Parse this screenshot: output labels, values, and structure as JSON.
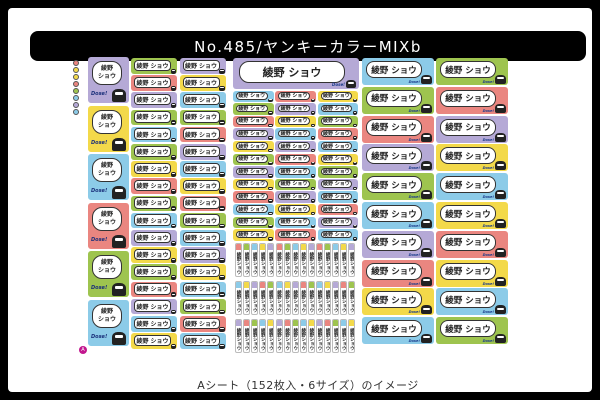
{
  "title": "No.485/ヤンキーカラーMIXb",
  "caption": "Aシート（152枚入・6サイズ）のイメージ",
  "sheet_mark": "A",
  "product_number_label": "No.485",
  "name_text": "綾野 ショウ",
  "name_line1": "綾野",
  "name_line2": "ショウ",
  "deco_text": "Dose!",
  "colors": {
    "purple": "#b5a9d6",
    "yellow": "#f3d94a",
    "blue": "#8ccbe8",
    "green": "#9ec44f",
    "pink": "#ea8680",
    "slate": "#a9b7cf"
  },
  "dot_colors": [
    "#ea8680",
    "#f3d94a",
    "#f3d94a",
    "#ea8680",
    "#9ec44f",
    "#8ccbe8",
    "#b5a9d6",
    "#8ccbe8"
  ],
  "left_large_labels": [
    "purple",
    "yellow",
    "blue",
    "pink",
    "green",
    "blue"
  ],
  "left_small_cols": [
    [
      "green",
      "pink",
      "purple",
      "green",
      "blue",
      "green",
      "yellow",
      "pink",
      "green",
      "blue",
      "purple",
      "yellow",
      "green",
      "pink",
      "purple",
      "blue",
      "yellow"
    ],
    [
      "purple",
      "yellow",
      "blue",
      "green",
      "pink",
      "purple",
      "blue",
      "yellow",
      "pink",
      "green",
      "blue",
      "purple",
      "yellow",
      "blue",
      "green",
      "pink",
      "blue"
    ]
  ],
  "middle_banner": "purple",
  "middle_small_cols": [
    [
      "blue",
      "green",
      "pink",
      "purple",
      "yellow",
      "green",
      "purple",
      "yellow",
      "pink",
      "blue",
      "green",
      "yellow"
    ],
    [
      "pink",
      "purple",
      "yellow",
      "blue",
      "purple",
      "pink",
      "blue",
      "green",
      "purple",
      "yellow",
      "blue",
      "pink"
    ],
    [
      "yellow",
      "blue",
      "green",
      "pink",
      "blue",
      "yellow",
      "green",
      "purple",
      "blue",
      "pink",
      "purple",
      "blue"
    ]
  ],
  "vertical_strip_rows": 3,
  "vertical_strip_cols": 15,
  "vertical_strip_colors": [
    "pink",
    "green",
    "blue",
    "yellow",
    "purple",
    "pink",
    "green",
    "blue",
    "yellow",
    "purple",
    "pink",
    "green",
    "blue",
    "yellow",
    "purple"
  ],
  "right_cols": [
    [
      "blue",
      "green",
      "pink",
      "purple",
      "green",
      "blue",
      "purple",
      "pink",
      "yellow",
      "blue"
    ],
    [
      "green",
      "pink",
      "purple",
      "yellow",
      "blue",
      "yellow",
      "pink",
      "yellow",
      "blue",
      "green"
    ]
  ]
}
